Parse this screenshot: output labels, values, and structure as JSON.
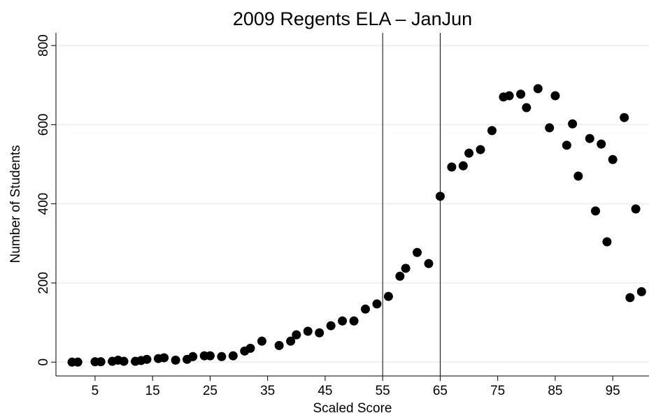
{
  "chart_data": {
    "type": "scatter",
    "title": "2009 Regents ELA – JanJun",
    "x_label": "Scaled Score",
    "y_label": "Number of Students",
    "x": [
      1,
      2,
      5,
      6,
      8,
      9,
      10,
      12,
      13,
      14,
      16,
      17,
      19,
      21,
      22,
      24,
      25,
      27,
      29,
      31,
      32,
      34,
      37,
      39,
      40,
      42,
      44,
      46,
      48,
      50,
      52,
      54,
      56,
      58,
      59,
      61,
      63,
      65,
      67,
      69,
      70,
      72,
      74,
      76,
      77,
      79,
      80,
      82,
      84,
      85,
      87,
      88,
      89,
      91,
      92,
      93,
      94,
      95,
      97,
      98,
      99,
      100
    ],
    "values": [
      0,
      0,
      1,
      1,
      2,
      5,
      2,
      2,
      4,
      7,
      9,
      11,
      5,
      7,
      14,
      16,
      16,
      14,
      16,
      28,
      35,
      53,
      42,
      53,
      69,
      78,
      74,
      92,
      104,
      104,
      134,
      147,
      166,
      217,
      237,
      277,
      249,
      419,
      493,
      496,
      528,
      537,
      585,
      670,
      673,
      677,
      643,
      691,
      592,
      673,
      548,
      602,
      470,
      565,
      382,
      551,
      304,
      512,
      618,
      163,
      387,
      178
    ],
    "color": "#000000",
    "xlim": [
      -1.8,
      101.3
    ],
    "ylim": [
      -35,
      832
    ],
    "xticks": [
      5,
      15,
      25,
      35,
      45,
      55,
      65,
      75,
      85,
      95
    ],
    "yticks": [
      0,
      200,
      400,
      600,
      800
    ],
    "xlines": [
      55,
      65
    ],
    "grid": true
  }
}
